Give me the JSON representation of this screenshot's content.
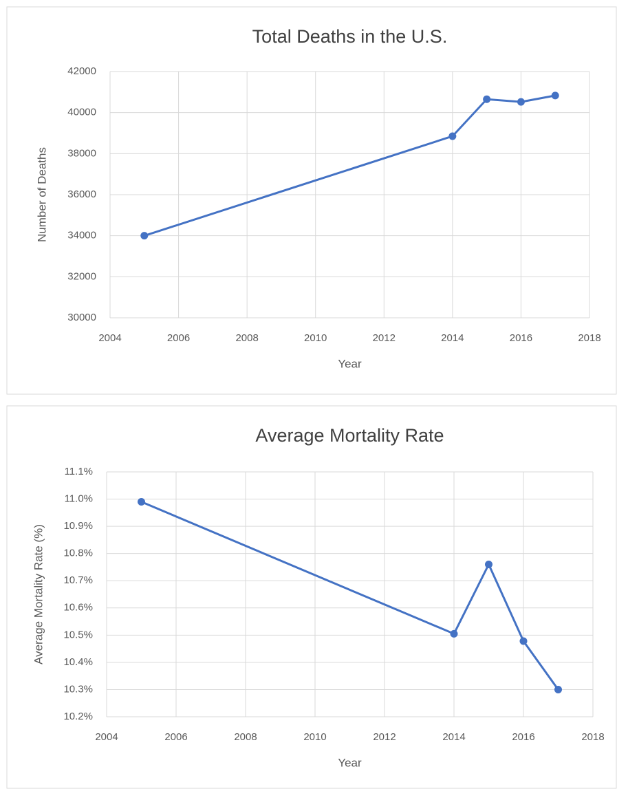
{
  "chart_data": [
    {
      "type": "line",
      "title": "Total Deaths in the U.S.",
      "x_label": "Year",
      "y_label": "Number  of Deaths",
      "x": [
        2005,
        2014,
        2015,
        2016,
        2017
      ],
      "values": [
        34000,
        38850,
        40650,
        40520,
        40830
      ],
      "color": "#4472c4",
      "xlim": [
        2004,
        2018
      ],
      "xticks": [
        2004,
        2006,
        2008,
        2010,
        2012,
        2014,
        2016,
        2018
      ],
      "ylim": [
        30000,
        42000
      ],
      "yticks": [
        30000,
        32000,
        34000,
        36000,
        38000,
        40000,
        42000
      ],
      "grid": true
    },
    {
      "type": "line",
      "title": "Average Mortality Rate",
      "x_label": "Year",
      "y_label": "Average Mortality Rate (%)",
      "x": [
        2005,
        2014,
        2015,
        2016,
        2017
      ],
      "values": [
        10.99,
        10.505,
        10.76,
        10.478,
        10.3
      ],
      "color": "#4472c4",
      "xlim": [
        2004,
        2018
      ],
      "xticks": [
        2004,
        2006,
        2008,
        2010,
        2012,
        2014,
        2016,
        2018
      ],
      "ylim": [
        10.2,
        11.1
      ],
      "yticks": [
        {
          "value": 10.2,
          "label": "10.2%"
        },
        {
          "value": 10.3,
          "label": "10.3%"
        },
        {
          "value": 10.4,
          "label": "10.4%"
        },
        {
          "value": 10.5,
          "label": "10.5%"
        },
        {
          "value": 10.6,
          "label": "10.6%"
        },
        {
          "value": 10.7,
          "label": "10.7%"
        },
        {
          "value": 10.8,
          "label": "10.8%"
        },
        {
          "value": 10.9,
          "label": "10.9%"
        },
        {
          "value": 11.0,
          "label": "11.0%"
        },
        {
          "value": 11.1,
          "label": "11.1%"
        }
      ],
      "grid": true
    }
  ]
}
